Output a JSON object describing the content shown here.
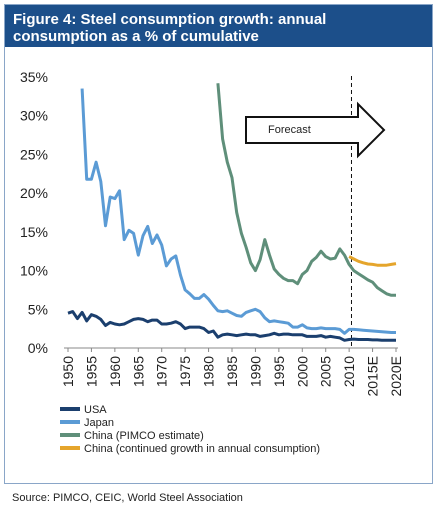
{
  "figure": {
    "title_line1": "Figure 4: Steel consumption growth: annual",
    "title_line2": "consumption as a % of cumulative",
    "source": "Source: PIMCO, CEIC, World Steel Association"
  },
  "chart_data": {
    "type": "line",
    "title": "Figure 4: Steel consumption growth: annual consumption as a % of cumulative",
    "xlabel": "",
    "ylabel": "",
    "xlim": [
      1950,
      2020
    ],
    "ylim": [
      0,
      35
    ],
    "y_ticks": [
      "0%",
      "5%",
      "10%",
      "15%",
      "20%",
      "25%",
      "30%",
      "35%"
    ],
    "x_ticks": [
      "1950",
      "1955",
      "1960",
      "1965",
      "1970",
      "1975",
      "1980",
      "1985",
      "1990",
      "1995",
      "2000",
      "2005",
      "2010",
      "2015E",
      "2020E"
    ],
    "forecast_start": 2010.5,
    "annotation": "Forecast",
    "legend_position": "bottom",
    "series": [
      {
        "name": "USA",
        "color": "#1b3f6e",
        "x": [
          1950,
          1951,
          1952,
          1953,
          1954,
          1955,
          1956,
          1957,
          1958,
          1959,
          1960,
          1961,
          1962,
          1963,
          1964,
          1965,
          1966,
          1967,
          1968,
          1969,
          1970,
          1971,
          1972,
          1973,
          1974,
          1975,
          1976,
          1977,
          1978,
          1979,
          1980,
          1981,
          1982,
          1983,
          1984,
          1985,
          1986,
          1987,
          1988,
          1989,
          1990,
          1991,
          1992,
          1993,
          1994,
          1995,
          1996,
          1997,
          1998,
          1999,
          2000,
          2001,
          2002,
          2003,
          2004,
          2005,
          2006,
          2007,
          2008,
          2009,
          2010,
          2011,
          2012,
          2013,
          2014,
          2015,
          2016,
          2017,
          2018,
          2019,
          2020
        ],
        "values": [
          4.5,
          4.7,
          3.8,
          4.6,
          3.5,
          4.3,
          4.1,
          3.7,
          2.9,
          3.3,
          3.1,
          3.0,
          3.1,
          3.4,
          3.7,
          3.8,
          3.7,
          3.4,
          3.6,
          3.6,
          3.1,
          3.1,
          3.2,
          3.4,
          3.1,
          2.5,
          2.7,
          2.7,
          2.7,
          2.5,
          2.0,
          2.2,
          1.4,
          1.7,
          1.8,
          1.7,
          1.6,
          1.7,
          1.8,
          1.7,
          1.7,
          1.5,
          1.6,
          1.7,
          1.9,
          1.7,
          1.8,
          1.8,
          1.7,
          1.7,
          1.7,
          1.5,
          1.5,
          1.5,
          1.6,
          1.4,
          1.5,
          1.4,
          1.3,
          1.0,
          1.1,
          1.15,
          1.1,
          1.1,
          1.1,
          1.05,
          1.05,
          1.0,
          1.0,
          1.0,
          1.0
        ]
      },
      {
        "name": "Japan",
        "color": "#5b9bd5",
        "x": [
          1953,
          1954,
          1955,
          1956,
          1957,
          1958,
          1959,
          1960,
          1961,
          1962,
          1963,
          1964,
          1965,
          1966,
          1967,
          1968,
          1969,
          1970,
          1971,
          1972,
          1973,
          1974,
          1975,
          1976,
          1977,
          1978,
          1979,
          1980,
          1981,
          1982,
          1983,
          1984,
          1985,
          1986,
          1987,
          1988,
          1989,
          1990,
          1991,
          1992,
          1993,
          1994,
          1995,
          1996,
          1997,
          1998,
          1999,
          2000,
          2001,
          2002,
          2003,
          2004,
          2005,
          2006,
          2007,
          2008,
          2009,
          2010,
          2011,
          2012,
          2013,
          2014,
          2015,
          2016,
          2017,
          2018,
          2019,
          2020
        ],
        "values": [
          33.5,
          21.8,
          21.8,
          24.0,
          21.5,
          15.8,
          19.5,
          19.3,
          20.3,
          14.0,
          15.2,
          14.8,
          12.0,
          14.5,
          15.7,
          13.5,
          14.6,
          13.3,
          10.6,
          11.5,
          11.9,
          9.4,
          7.5,
          7.0,
          6.4,
          6.4,
          6.9,
          6.3,
          5.5,
          4.8,
          4.7,
          4.8,
          4.5,
          4.2,
          4.1,
          4.6,
          4.8,
          5.0,
          4.7,
          3.9,
          3.4,
          3.5,
          3.4,
          3.3,
          3.2,
          2.7,
          2.7,
          3.0,
          2.6,
          2.5,
          2.5,
          2.6,
          2.5,
          2.5,
          2.5,
          2.4,
          1.9,
          2.4,
          2.4,
          2.35,
          2.3,
          2.25,
          2.2,
          2.15,
          2.1,
          2.05,
          2.0,
          2.0
        ]
      },
      {
        "name": "China (PIMCO estimate)",
        "color": "#5f8f7a",
        "x": [
          1982,
          1983,
          1984,
          1985,
          1986,
          1987,
          1988,
          1989,
          1990,
          1991,
          1992,
          1993,
          1994,
          1995,
          1996,
          1997,
          1998,
          1999,
          2000,
          2001,
          2002,
          2003,
          2004,
          2005,
          2006,
          2007,
          2008,
          2009,
          2010,
          2011,
          2012,
          2013,
          2014,
          2015,
          2016,
          2017,
          2018,
          2019,
          2020
        ],
        "values": [
          34.2,
          27.0,
          24.0,
          22.0,
          17.5,
          14.8,
          13.0,
          11.0,
          10.0,
          11.4,
          14.0,
          12.0,
          10.2,
          9.5,
          9.0,
          8.7,
          8.7,
          8.3,
          9.5,
          10.0,
          11.2,
          11.7,
          12.5,
          11.8,
          11.5,
          11.6,
          12.8,
          12.0,
          10.8,
          10.0,
          9.6,
          9.2,
          8.8,
          8.5,
          7.8,
          7.4,
          7.0,
          6.8,
          6.8
        ]
      },
      {
        "name": "China (continued growth in annual consumption)",
        "color": "#e5a52c",
        "x": [
          2010,
          2011,
          2012,
          2013,
          2014,
          2015,
          2016,
          2017,
          2018,
          2019,
          2020
        ],
        "values": [
          11.8,
          11.5,
          11.2,
          11.0,
          10.85,
          10.8,
          10.7,
          10.7,
          10.7,
          10.8,
          10.9
        ]
      }
    ]
  }
}
